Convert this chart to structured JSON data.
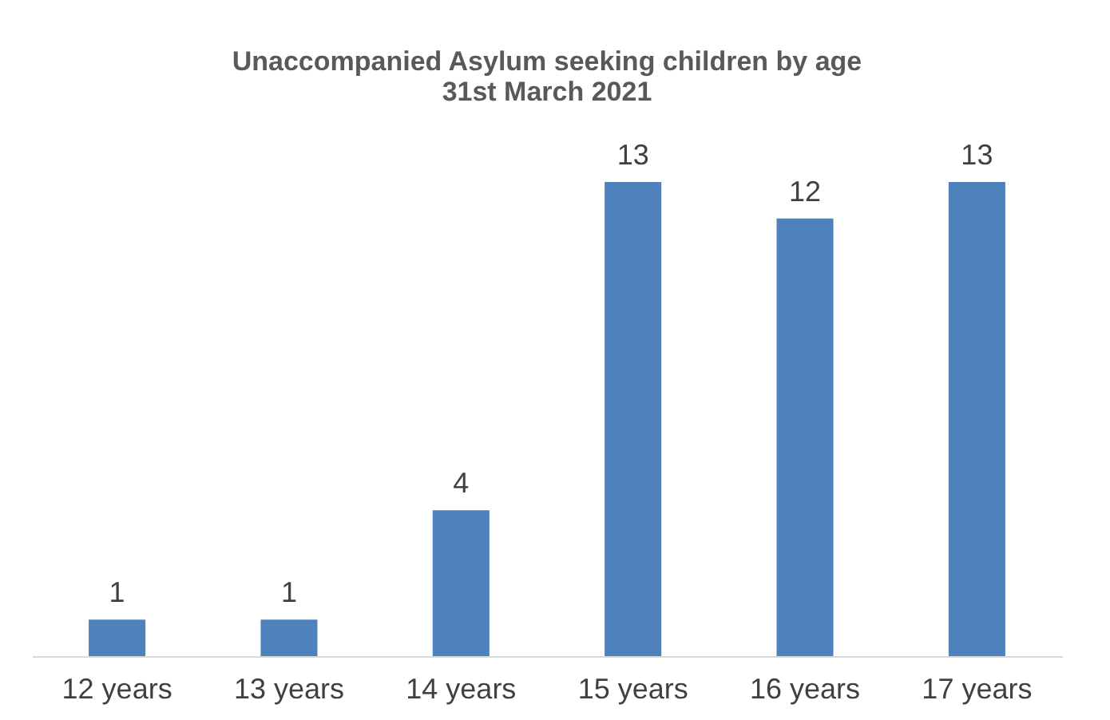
{
  "chart_data": {
    "type": "bar",
    "title": "Unaccompanied Asylum seeking children by age\n31st March 2021",
    "categories": [
      "12 years",
      "13 years",
      "14 years",
      "15 years",
      "16 years",
      "17 years"
    ],
    "values": [
      1,
      1,
      4,
      13,
      12,
      13
    ],
    "color": "#4f81bd",
    "data_labels": true
  }
}
